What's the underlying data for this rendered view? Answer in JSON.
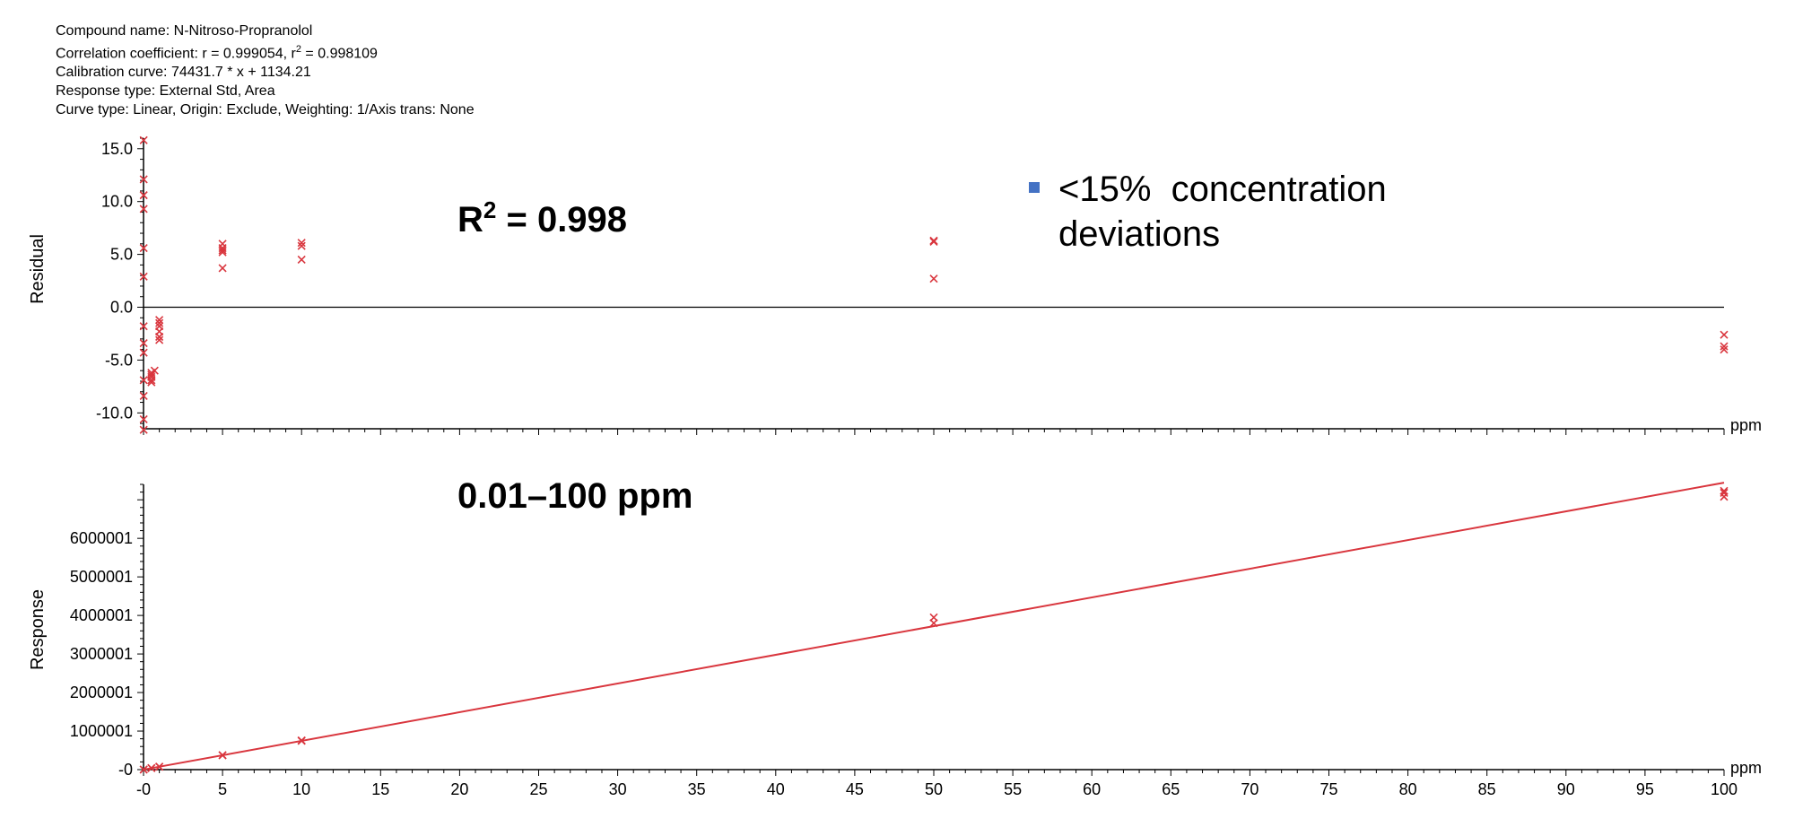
{
  "header": {
    "compound": "Compound name: N-Nitroso-Propranolol",
    "correlation_prefix": "Correlation coefficient: r = 0.999054, r",
    "correlation_sup": "2",
    "correlation_suffix": " = 0.998109",
    "calibration": "Calibration curve: 74431.7 * x + 1134.21",
    "response_type": "Response type: External Std, Area",
    "curve_type": "Curve type: Linear, Origin: Exclude, Weighting: 1/Axis trans: None"
  },
  "colors": {
    "marker": "#d9363e",
    "fit": "#d9363e",
    "legend_square": "#4472c4",
    "axis": "#000000"
  },
  "chart_data": [
    {
      "type": "scatter",
      "ylabel": "Residual",
      "x_unit": "ppm",
      "xlim": [
        0,
        100
      ],
      "ylim": [
        -11.5,
        16
      ],
      "yticks": [
        15,
        10,
        5,
        0,
        -5,
        -10
      ],
      "ytick_labels": [
        "15.0",
        "10.0",
        "5.0",
        "0.0",
        "-5.0",
        "-10.0"
      ],
      "zero_line": true,
      "annotation_r2": {
        "base": "R",
        "sup": "2",
        "rest": " = 0.998"
      },
      "legend": {
        "line1": "<15%  concentration",
        "line2": "deviations"
      },
      "points": [
        [
          0.01,
          15.8
        ],
        [
          0.01,
          12.1
        ],
        [
          0.01,
          10.6
        ],
        [
          0.01,
          9.3
        ],
        [
          0.01,
          5.6
        ],
        [
          0.01,
          2.9
        ],
        [
          0.01,
          -1.8
        ],
        [
          0.01,
          -3.4
        ],
        [
          0.01,
          -4.3
        ],
        [
          0.01,
          -6.9
        ],
        [
          0.01,
          -8.4
        ],
        [
          0.01,
          -10.6
        ],
        [
          0.01,
          -11.6
        ],
        [
          0.5,
          -6.2
        ],
        [
          0.5,
          -6.6
        ],
        [
          0.5,
          -6.9
        ],
        [
          0.5,
          -7.1
        ],
        [
          0.5,
          -6.4
        ],
        [
          0.7,
          -6.0
        ],
        [
          1,
          -1.2
        ],
        [
          1,
          -1.8
        ],
        [
          1,
          -2.3
        ],
        [
          1,
          -2.8
        ],
        [
          1,
          -3.1
        ],
        [
          1,
          -1.5
        ],
        [
          5,
          6.0
        ],
        [
          5,
          5.6
        ],
        [
          5,
          5.2
        ],
        [
          5,
          3.7
        ],
        [
          5,
          5.4
        ],
        [
          10,
          6.1
        ],
        [
          10,
          5.8
        ],
        [
          10,
          4.5
        ],
        [
          50,
          6.3
        ],
        [
          50,
          6.2
        ],
        [
          50,
          2.7
        ],
        [
          100,
          -2.6
        ],
        [
          100,
          -3.7
        ],
        [
          100,
          -4.0
        ]
      ]
    },
    {
      "type": "scatter",
      "ylabel": "Response",
      "x_unit": "ppm",
      "xlim": [
        0,
        100
      ],
      "ylim": [
        0,
        7400000
      ],
      "yticks": [
        0,
        1000001,
        2000001,
        3000001,
        4000001,
        5000001,
        6000001
      ],
      "ytick_labels": [
        "-0",
        "1000001",
        "2000001",
        "3000001",
        "4000001",
        "5000001",
        "6000001"
      ],
      "xticks": [
        0,
        5,
        10,
        15,
        20,
        25,
        30,
        35,
        40,
        45,
        50,
        55,
        60,
        65,
        70,
        75,
        80,
        85,
        90,
        95,
        100
      ],
      "xtick_labels": [
        "-0",
        "5",
        "10",
        "15",
        "20",
        "25",
        "30",
        "35",
        "40",
        "45",
        "50",
        "55",
        "60",
        "65",
        "70",
        "75",
        "80",
        "85",
        "90",
        "95",
        "100"
      ],
      "annotation_range": "0.01–100 ppm",
      "fit": {
        "slope": 74431.7,
        "intercept": 1134.21
      },
      "points": [
        [
          0.01,
          1800
        ],
        [
          0.01,
          2100
        ],
        [
          0.5,
          38000
        ],
        [
          0.5,
          40000
        ],
        [
          1,
          73000
        ],
        [
          1,
          76000
        ],
        [
          5,
          372000
        ],
        [
          5,
          378000
        ],
        [
          10,
          746000
        ],
        [
          10,
          758000
        ],
        [
          50,
          3800000
        ],
        [
          50,
          3950000
        ],
        [
          100,
          7080000
        ],
        [
          100,
          7180000
        ],
        [
          100,
          7230000
        ]
      ]
    }
  ]
}
